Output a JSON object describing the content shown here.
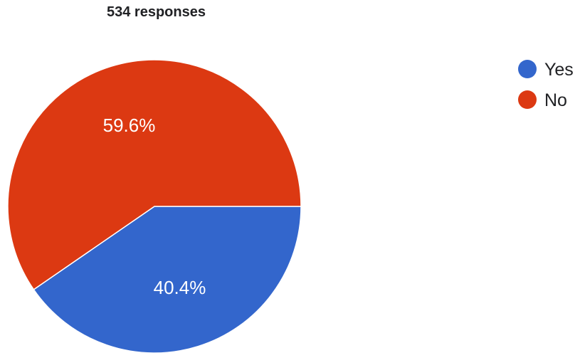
{
  "header": {
    "responses_text": "534 responses"
  },
  "chart_data": {
    "type": "pie",
    "title": "",
    "slices": [
      {
        "label": "Yes",
        "value": 40.4,
        "display": "40.4%",
        "color": "#3366cc"
      },
      {
        "label": "No",
        "value": 59.6,
        "display": "59.6%",
        "color": "#dc3912"
      }
    ],
    "legend_position": "right"
  }
}
